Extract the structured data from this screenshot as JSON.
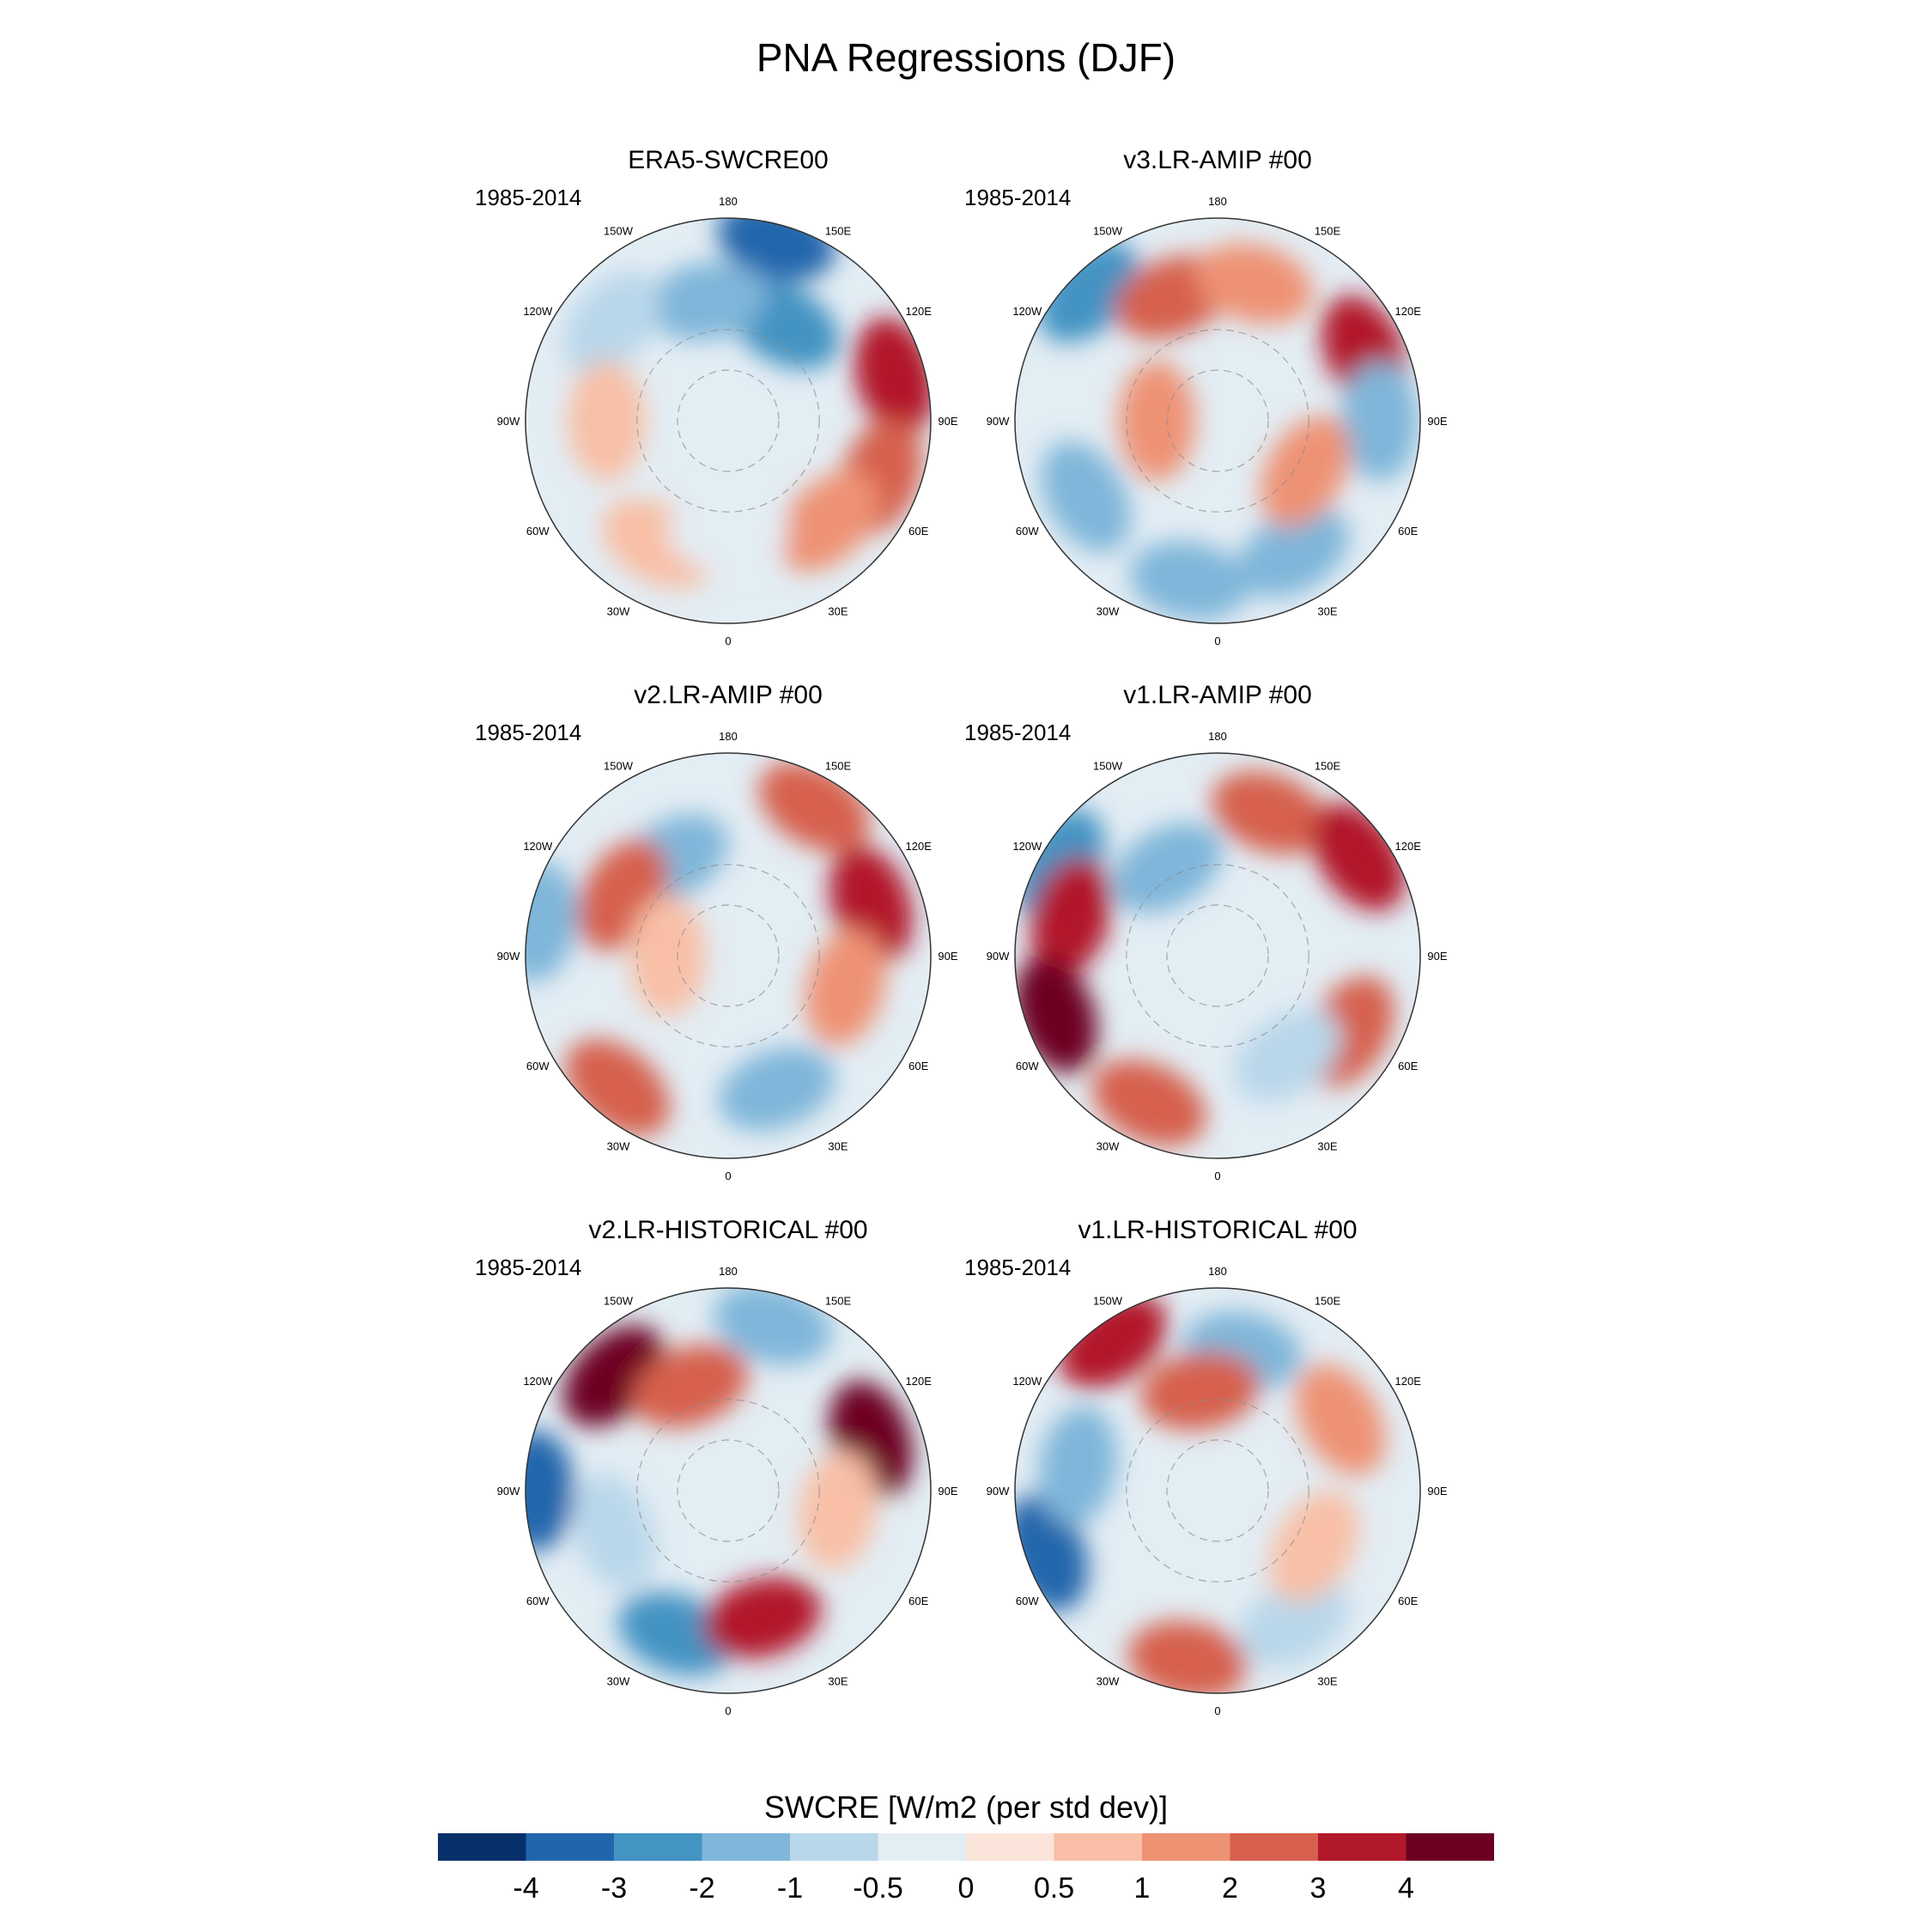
{
  "figure_title": "PNA Regressions (DJF)",
  "period": "1985-2014",
  "lon_labels": [
    "180",
    "150E",
    "120E",
    "90E",
    "60E",
    "30E",
    "0",
    "30W",
    "60W",
    "90W",
    "120W",
    "150W"
  ],
  "colorbar": {
    "title": "SWCRE [W/m2 (per std dev)]",
    "ticks": [
      "-4",
      "-3",
      "-2",
      "-1",
      "-0.5",
      "0",
      "0.5",
      "1",
      "2",
      "3",
      "4"
    ],
    "colors": [
      "#08306b",
      "#2166ac",
      "#4393c3",
      "#7fb6d9",
      "#b9d7ea",
      "#e3edf4",
      "#fbe4da",
      "#f8bfa6",
      "#ee9274",
      "#d6604d",
      "#b2182b",
      "#6d0021"
    ]
  },
  "chart_data": [
    {
      "type": "heatmap",
      "projection": "north-polar-stereographic",
      "title": "ERA5-SWCRE00",
      "period": "1985-2014",
      "anomalies": [
        {
          "lon": 165,
          "colat": 0.92,
          "value": -4
        },
        {
          "lon": 150,
          "colat": 0.55,
          "value": -3
        },
        {
          "lon": 105,
          "colat": 0.85,
          "value": 3
        },
        {
          "lon": 70,
          "colat": 0.8,
          "value": 2
        },
        {
          "lon": 45,
          "colat": 0.7,
          "value": 1
        },
        {
          "lon": -170,
          "colat": 0.6,
          "value": -2
        },
        {
          "lon": -130,
          "colat": 0.75,
          "value": -1
        },
        {
          "lon": -90,
          "colat": 0.6,
          "value": 0.5
        },
        {
          "lon": -30,
          "colat": 0.7,
          "value": 0.5
        },
        {
          "lon": 0,
          "colat": 0.55,
          "value": -0.5
        }
      ]
    },
    {
      "type": "heatmap",
      "projection": "north-polar-stereographic",
      "title": "v3.LR-AMIP  #00",
      "period": "1985-2014",
      "anomalies": [
        {
          "lon": 115,
          "colat": 0.8,
          "value": 3
        },
        {
          "lon": 90,
          "colat": 0.8,
          "value": -2
        },
        {
          "lon": 30,
          "colat": 0.75,
          "value": -2
        },
        {
          "lon": -135,
          "colat": 0.9,
          "value": -3
        },
        {
          "lon": -160,
          "colat": 0.65,
          "value": 2
        },
        {
          "lon": 165,
          "colat": 0.7,
          "value": 1
        },
        {
          "lon": -90,
          "colat": 0.3,
          "value": 1
        },
        {
          "lon": -60,
          "colat": 0.75,
          "value": -2
        },
        {
          "lon": -10,
          "colat": 0.8,
          "value": -2
        },
        {
          "lon": 60,
          "colat": 0.5,
          "value": 1
        }
      ]
    },
    {
      "type": "heatmap",
      "projection": "north-polar-stereographic",
      "title": "v2.LR-AMIP  #00",
      "period": "1985-2014",
      "anomalies": [
        {
          "lon": 110,
          "colat": 0.75,
          "value": 3
        },
        {
          "lon": 150,
          "colat": 0.85,
          "value": 2
        },
        {
          "lon": -150,
          "colat": 0.55,
          "value": -2
        },
        {
          "lon": -120,
          "colat": 0.6,
          "value": 2
        },
        {
          "lon": -100,
          "colat": 0.95,
          "value": -2
        },
        {
          "lon": 20,
          "colat": 0.7,
          "value": -2
        },
        {
          "lon": -40,
          "colat": 0.85,
          "value": 2
        },
        {
          "lon": 75,
          "colat": 0.6,
          "value": 1
        },
        {
          "lon": -90,
          "colat": 0.3,
          "value": 0.5
        }
      ]
    },
    {
      "type": "heatmap",
      "projection": "north-polar-stereographic",
      "title": "v1.LR-AMIP  #00",
      "period": "1985-2014",
      "anomalies": [
        {
          "lon": -120,
          "colat": 0.9,
          "value": -3
        },
        {
          "lon": 160,
          "colat": 0.75,
          "value": 2
        },
        {
          "lon": 125,
          "colat": 0.85,
          "value": 3
        },
        {
          "lon": -105,
          "colat": 0.75,
          "value": 3
        },
        {
          "lon": -70,
          "colat": 0.85,
          "value": 4
        },
        {
          "lon": -150,
          "colat": 0.5,
          "value": -2
        },
        {
          "lon": 60,
          "colat": 0.75,
          "value": 2
        },
        {
          "lon": -25,
          "colat": 0.8,
          "value": 2
        },
        {
          "lon": 35,
          "colat": 0.6,
          "value": -1
        }
      ]
    },
    {
      "type": "heatmap",
      "projection": "north-polar-stereographic",
      "title": "v2.LR-HISTORICAL  #00",
      "period": "1985-2014",
      "anomalies": [
        {
          "lon": -135,
          "colat": 0.8,
          "value": 4
        },
        {
          "lon": -160,
          "colat": 0.55,
          "value": 2
        },
        {
          "lon": 165,
          "colat": 0.85,
          "value": -2
        },
        {
          "lon": 110,
          "colat": 0.75,
          "value": 4
        },
        {
          "lon": -90,
          "colat": 0.95,
          "value": -4
        },
        {
          "lon": -20,
          "colat": 0.75,
          "value": -3
        },
        {
          "lon": 15,
          "colat": 0.65,
          "value": 3
        },
        {
          "lon": -70,
          "colat": 0.6,
          "value": -1
        },
        {
          "lon": 80,
          "colat": 0.55,
          "value": 0.5
        }
      ]
    },
    {
      "type": "heatmap",
      "projection": "north-polar-stereographic",
      "title": "v1.LR-HISTORICAL  #00",
      "period": "1985-2014",
      "anomalies": [
        {
          "lon": -145,
          "colat": 0.9,
          "value": 3
        },
        {
          "lon": 170,
          "colat": 0.7,
          "value": -2
        },
        {
          "lon": -170,
          "colat": 0.5,
          "value": 2
        },
        {
          "lon": -70,
          "colat": 0.9,
          "value": -4
        },
        {
          "lon": -100,
          "colat": 0.7,
          "value": -2
        },
        {
          "lon": 120,
          "colat": 0.7,
          "value": 1
        },
        {
          "lon": 30,
          "colat": 0.75,
          "value": -1
        },
        {
          "lon": -10,
          "colat": 0.85,
          "value": 2
        },
        {
          "lon": 60,
          "colat": 0.55,
          "value": 0.5
        }
      ]
    }
  ]
}
